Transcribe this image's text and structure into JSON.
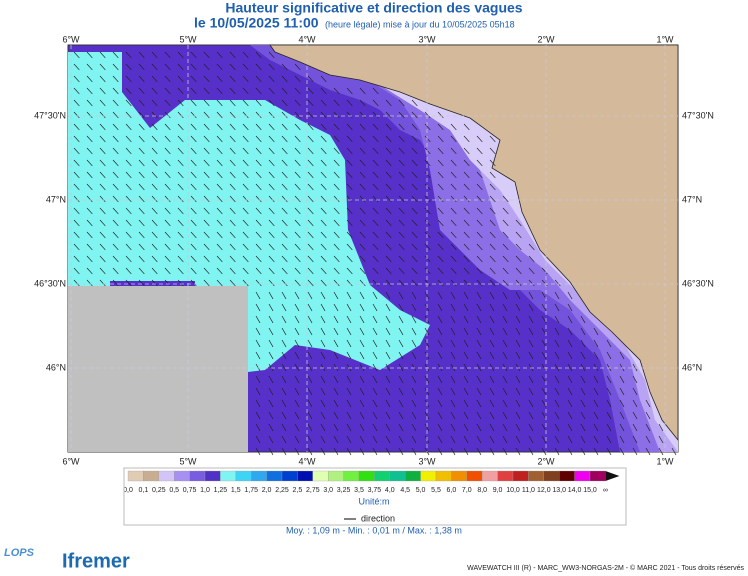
{
  "header": {
    "title": "Hauteur significative et direction des vagues",
    "date": "le 10/05/2025 11:00",
    "update": "(heure légale) mise à jour du 10/05/2025 05h18"
  },
  "map": {
    "lon_labels": [
      "6°W",
      "5°W",
      "4°W",
      "3°W",
      "2°W",
      "1°W"
    ],
    "lat_labels": [
      "47°30'N",
      "47°N",
      "46°30'N",
      "46°N"
    ]
  },
  "legend": {
    "labels": [
      "0,0",
      "0,1",
      "0,25",
      "0,5",
      "0,75",
      "1,0",
      "1,25",
      "1,5",
      "1,75",
      "2,0",
      "2,25",
      "2,5",
      "2,75",
      "3,0",
      "3,25",
      "3,5",
      "3,75",
      "4,0",
      "4,5",
      "5,0",
      "5,5",
      "6,0",
      "7,0",
      "8,0",
      "9,0",
      "10,0",
      "11,0",
      "12,0",
      "13,0",
      "14,0",
      "15,0",
      "∞"
    ],
    "colors": [
      "#e0cbb4",
      "#c9ad92",
      "#d3c4f8",
      "#a890f0",
      "#7a5ce0",
      "#5232c6",
      "#80f4f0",
      "#40d4f4",
      "#30a8f0",
      "#1070e0",
      "#0040d0",
      "#0010b0",
      "#e0ffb0",
      "#b0f080",
      "#70f040",
      "#30e010",
      "#10d070",
      "#10c090",
      "#10b040",
      "#f0f000",
      "#f0c000",
      "#f09000",
      "#f05000",
      "#f0a0a0",
      "#e04040",
      "#c02020",
      "#a06030",
      "#804020",
      "#600000",
      "#f000f0",
      "#a00060"
    ],
    "unit": "Unité:m",
    "direction": "direction"
  },
  "stats": "Moy. : 1,09 m   -   Min. : 0,01 m / Max. : 1,38 m",
  "footer": {
    "credits": "WAVEWATCH III (R) - MARC_WW3-NORGAS-2M - © MARC 2021 - Tous droits réservés",
    "logo1": "LOPS",
    "logo2": "Ifremer"
  }
}
